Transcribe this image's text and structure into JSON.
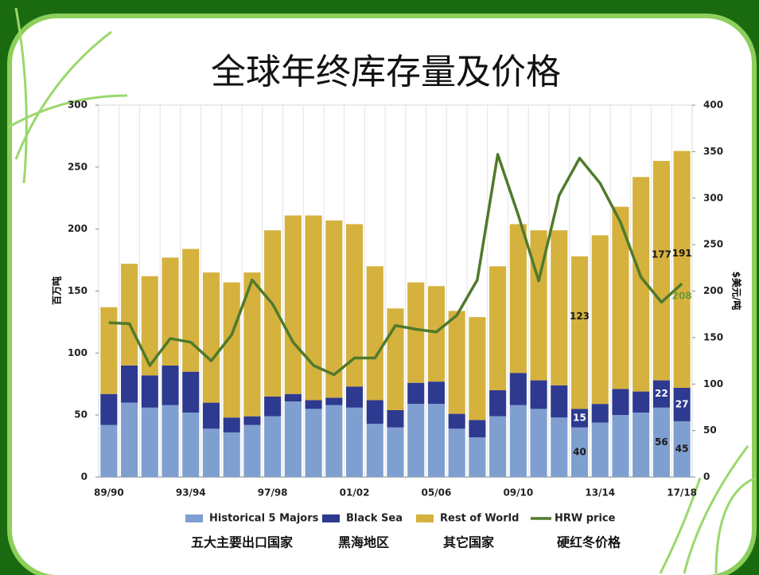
{
  "chart_data": {
    "type": "stacked-bar-line",
    "title": "全球年终库存量及价格",
    "y_label": "百万吨",
    "y2_label": "$美元/吨",
    "categories": [
      "89/90",
      null,
      null,
      null,
      "93/94",
      null,
      null,
      null,
      "97/98",
      null,
      null,
      null,
      "01/02",
      null,
      null,
      null,
      "05/06",
      null,
      null,
      null,
      "09/10",
      null,
      null,
      null,
      "13/14",
      null,
      null,
      null,
      "17/18"
    ],
    "ylim": [
      0,
      300
    ],
    "yticks": [
      0,
      50,
      100,
      150,
      200,
      250,
      300
    ],
    "y2lim": [
      0,
      400
    ],
    "y2ticks": [
      0,
      50,
      100,
      150,
      200,
      250,
      300,
      350,
      400
    ],
    "series": [
      {
        "name": "Historical 5 Majors",
        "type": "bar",
        "color": "#7f9fd0",
        "label_color": "#1a1a1a",
        "values": [
          42,
          60,
          56,
          58,
          52,
          39,
          36,
          42,
          49,
          61,
          55,
          58,
          56,
          43,
          40,
          59,
          59,
          39,
          32,
          49,
          58,
          55,
          48,
          40,
          44,
          50,
          52,
          56,
          45
        ],
        "value_labels": [
          null,
          null,
          null,
          null,
          null,
          null,
          null,
          null,
          null,
          null,
          null,
          null,
          null,
          null,
          null,
          null,
          null,
          null,
          null,
          null,
          null,
          null,
          null,
          "40",
          null,
          null,
          null,
          "56",
          "45"
        ]
      },
      {
        "name": "Black Sea",
        "type": "bar",
        "color": "#2d3a90",
        "label_color": "#ffffff",
        "values": [
          25,
          30,
          26,
          32,
          33,
          21,
          12,
          7,
          16,
          6,
          7,
          6,
          17,
          19,
          14,
          17,
          18,
          12,
          14,
          21,
          26,
          23,
          26,
          15,
          15,
          21,
          17,
          22,
          27
        ],
        "value_labels": [
          null,
          null,
          null,
          null,
          null,
          null,
          null,
          null,
          null,
          null,
          null,
          null,
          null,
          null,
          null,
          null,
          null,
          null,
          null,
          null,
          null,
          null,
          null,
          "15",
          null,
          null,
          null,
          "22",
          "27"
        ]
      },
      {
        "name": "Rest of World",
        "type": "bar",
        "color": "#d5b13e",
        "label_color": "#1a1a1a",
        "values": [
          70,
          82,
          80,
          87,
          99,
          105,
          109,
          116,
          134,
          144,
          149,
          143,
          131,
          108,
          82,
          81,
          77,
          83,
          83,
          100,
          120,
          121,
          125,
          123,
          136,
          147,
          173,
          177,
          191
        ],
        "value_labels": [
          null,
          null,
          null,
          null,
          null,
          null,
          null,
          null,
          null,
          null,
          null,
          null,
          null,
          null,
          null,
          null,
          null,
          null,
          null,
          null,
          null,
          null,
          null,
          "123",
          null,
          null,
          null,
          "177",
          "191"
        ]
      },
      {
        "name": "HRW price",
        "type": "line",
        "axis": "y2",
        "color": "#4f7a2b",
        "label_color": "#6f9a3a",
        "values": [
          166,
          165,
          120,
          149,
          145,
          125,
          153,
          212,
          186,
          145,
          120,
          110,
          128,
          128,
          163,
          159,
          156,
          174,
          212,
          347,
          282,
          211,
          303,
          343,
          316,
          274,
          215,
          188,
          208
        ],
        "value_labels": [
          null,
          null,
          null,
          null,
          null,
          null,
          null,
          null,
          null,
          null,
          null,
          null,
          null,
          null,
          null,
          null,
          null,
          null,
          null,
          null,
          null,
          null,
          null,
          null,
          null,
          null,
          null,
          null,
          "208"
        ]
      }
    ],
    "legend_notes": [
      "五大主要出口国家",
      "黑海地区",
      "其它国家",
      "硬红冬价格"
    ]
  }
}
